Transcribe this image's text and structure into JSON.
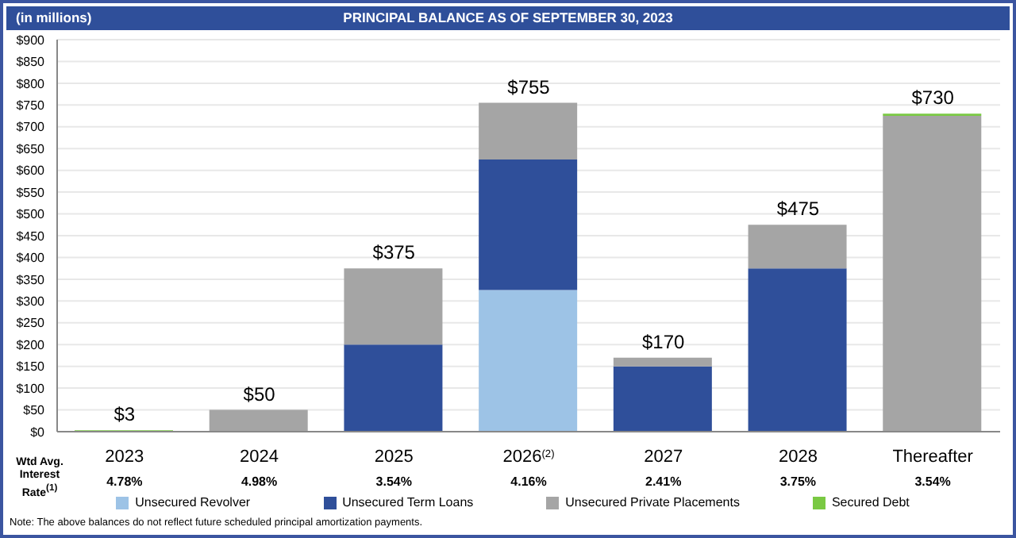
{
  "chart_data": {
    "type": "bar",
    "title": "PRINCIPAL BALANCE AS OF SEPTEMBER 30, 2023",
    "ylabel": "(in millions)",
    "stacked": true,
    "categories": [
      "2023",
      "2024",
      "2025",
      "2026$^{(2)}$",
      "2027",
      "2028",
      "Thereafter"
    ],
    "series": [
      {
        "name": "Unsecured Revolver",
        "color": "#9dc3e6",
        "values": [
          null,
          null,
          null,
          325,
          null,
          null,
          null
        ]
      },
      {
        "name": "Unsecured Term Loans",
        "color": "#2f4f9a",
        "values": [
          null,
          null,
          200,
          300,
          150,
          375,
          null
        ]
      },
      {
        "name": "Unsecured Private Placements",
        "color": "#a5a5a5",
        "values": [
          null,
          50,
          175,
          130,
          20,
          100,
          725
        ]
      },
      {
        "name": "Secured Debt",
        "color": "#7ac943",
        "values": [
          3,
          null,
          null,
          null,
          null,
          null,
          5
        ]
      }
    ],
    "totals": [
      "$3",
      "$50",
      "$375",
      "$755",
      "$170",
      "$475",
      "$730"
    ],
    "ylim": [
      0,
      900
    ],
    "yticks": [
      {
        "value": 0,
        "label": "$0"
      },
      {
        "value": 50,
        "label": "$50"
      },
      {
        "value": 100,
        "label": "$100"
      },
      {
        "value": 150,
        "label": "$150"
      },
      {
        "value": 200,
        "label": "$200"
      },
      {
        "value": 250,
        "label": "$250"
      },
      {
        "value": 300,
        "label": "$300"
      },
      {
        "value": 350,
        "label": "$350"
      },
      {
        "value": 400,
        "label": "$400"
      },
      {
        "value": 450,
        "label": "$450"
      },
      {
        "value": 500,
        "label": "$500"
      },
      {
        "value": 550,
        "label": "$550"
      },
      {
        "value": 600,
        "label": "$600"
      },
      {
        "value": 650,
        "label": "$650"
      },
      {
        "value": 700,
        "label": "$700"
      },
      {
        "value": 750,
        "label": "$750"
      },
      {
        "value": 800,
        "label": "$800"
      },
      {
        "value": 850,
        "label": "$850"
      },
      {
        "value": 900,
        "label": "$900"
      }
    ],
    "grid": "y",
    "legend": "bottom",
    "annotations": [
      "Note: The above balances do not reflect future scheduled principal amortization payments.",
      "Wtd Avg. Interest Rate$^{(1)}$",
      "4.78%",
      "4.98%",
      "3.54%",
      "4.16%",
      "2.41%",
      "3.75%",
      "3.54%"
    ]
  }
}
